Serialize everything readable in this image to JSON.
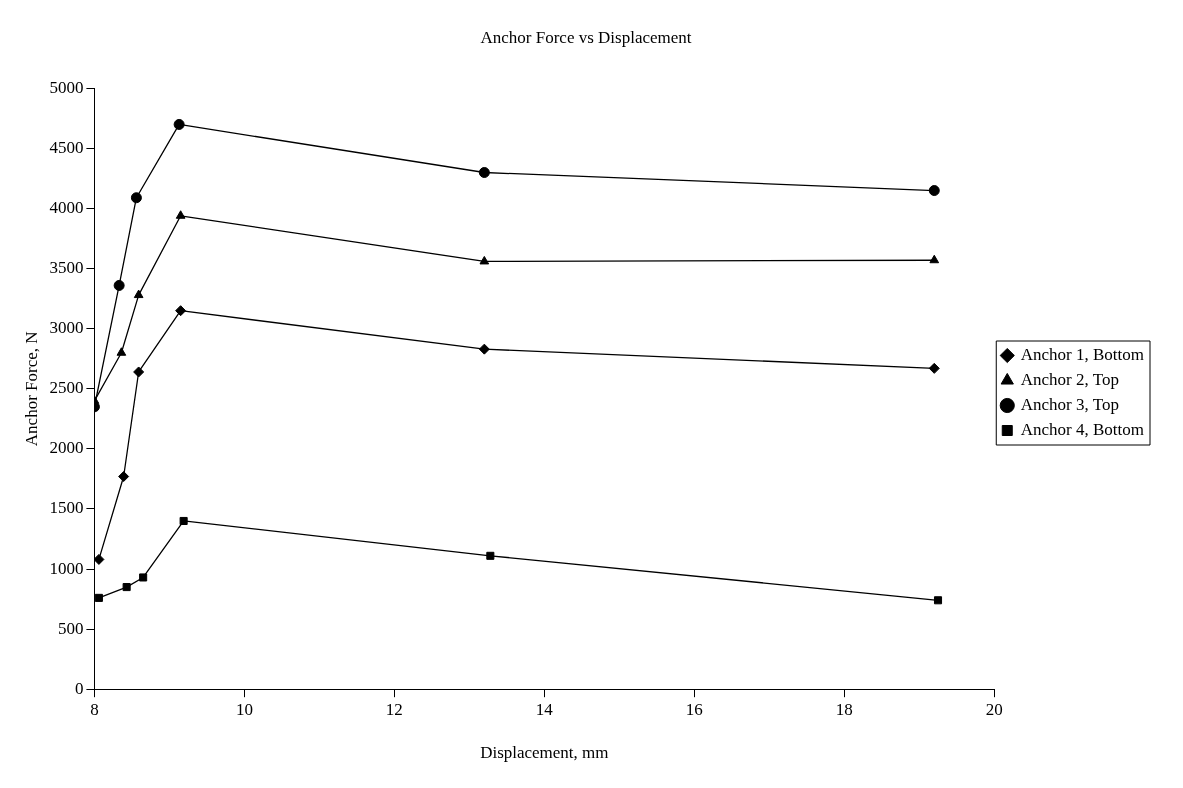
{
  "chart_data": {
    "type": "line",
    "title": "Anchor Force vs Displacement",
    "xlabel": "Displacement, mm",
    "ylabel": "Anchor Force, N",
    "xlim": [
      8,
      20
    ],
    "xticks": [
      8,
      10,
      12,
      14,
      16,
      18,
      20
    ],
    "ylim": [
      0,
      5000
    ],
    "yticks": [
      0,
      500,
      1000,
      1500,
      2000,
      2500,
      3000,
      3500,
      4000,
      4500,
      5000
    ],
    "grid": false,
    "legend": "right",
    "line_style": "solid",
    "series": [
      {
        "name": "Anchor 1, Bottom",
        "color": "#000000",
        "marker": "diamond",
        "x": [
          8.06,
          8.39,
          8.59,
          9.15,
          13.2,
          19.2
        ],
        "values": [
          1080,
          1770,
          2640,
          3150,
          2830,
          2670
        ]
      },
      {
        "name": "Anchor 2, Top",
        "color": "#000000",
        "marker": "triangle",
        "x": [
          8.0,
          8.36,
          8.59,
          9.15,
          13.2,
          19.2
        ],
        "values": [
          2400,
          2800,
          3280,
          3940,
          3560,
          3570
        ]
      },
      {
        "name": "Anchor 3, Top",
        "color": "#000000",
        "marker": "circle",
        "x": [
          8.0,
          8.33,
          8.56,
          9.13,
          13.2,
          19.2
        ],
        "values": [
          2350,
          3360,
          4090,
          4700,
          4300,
          4150
        ]
      },
      {
        "name": "Anchor 4, Bottom",
        "color": "#000000",
        "marker": "square",
        "x": [
          8.06,
          8.43,
          8.65,
          9.19,
          13.28,
          19.25
        ],
        "values": [
          760,
          850,
          930,
          1400,
          1110,
          740
        ]
      }
    ]
  }
}
